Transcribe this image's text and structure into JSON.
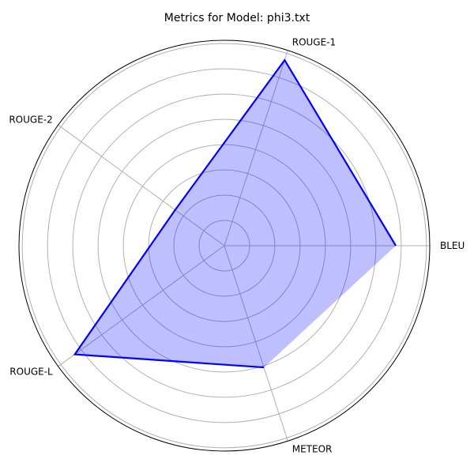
{
  "chart_data": {
    "type": "radar",
    "title": "Metrics for Model: phi3.txt",
    "categories": [
      "BLEU",
      "ROUGE-1",
      "ROUGE-2",
      "ROUGE-L",
      "METEOR"
    ],
    "series": [
      {
        "values": [
          0.217,
          0.247,
          0.077,
          0.234,
          0.162
        ]
      }
    ],
    "rlim": [
      0,
      0.26
    ],
    "grid": true,
    "radial_tick_labels_visible": false,
    "colors": {
      "line": "#0000ff",
      "fill": "#0000ff",
      "fill_opacity": 0.25,
      "grid": "#b0b0b0",
      "outer_circle": "#000000"
    }
  }
}
